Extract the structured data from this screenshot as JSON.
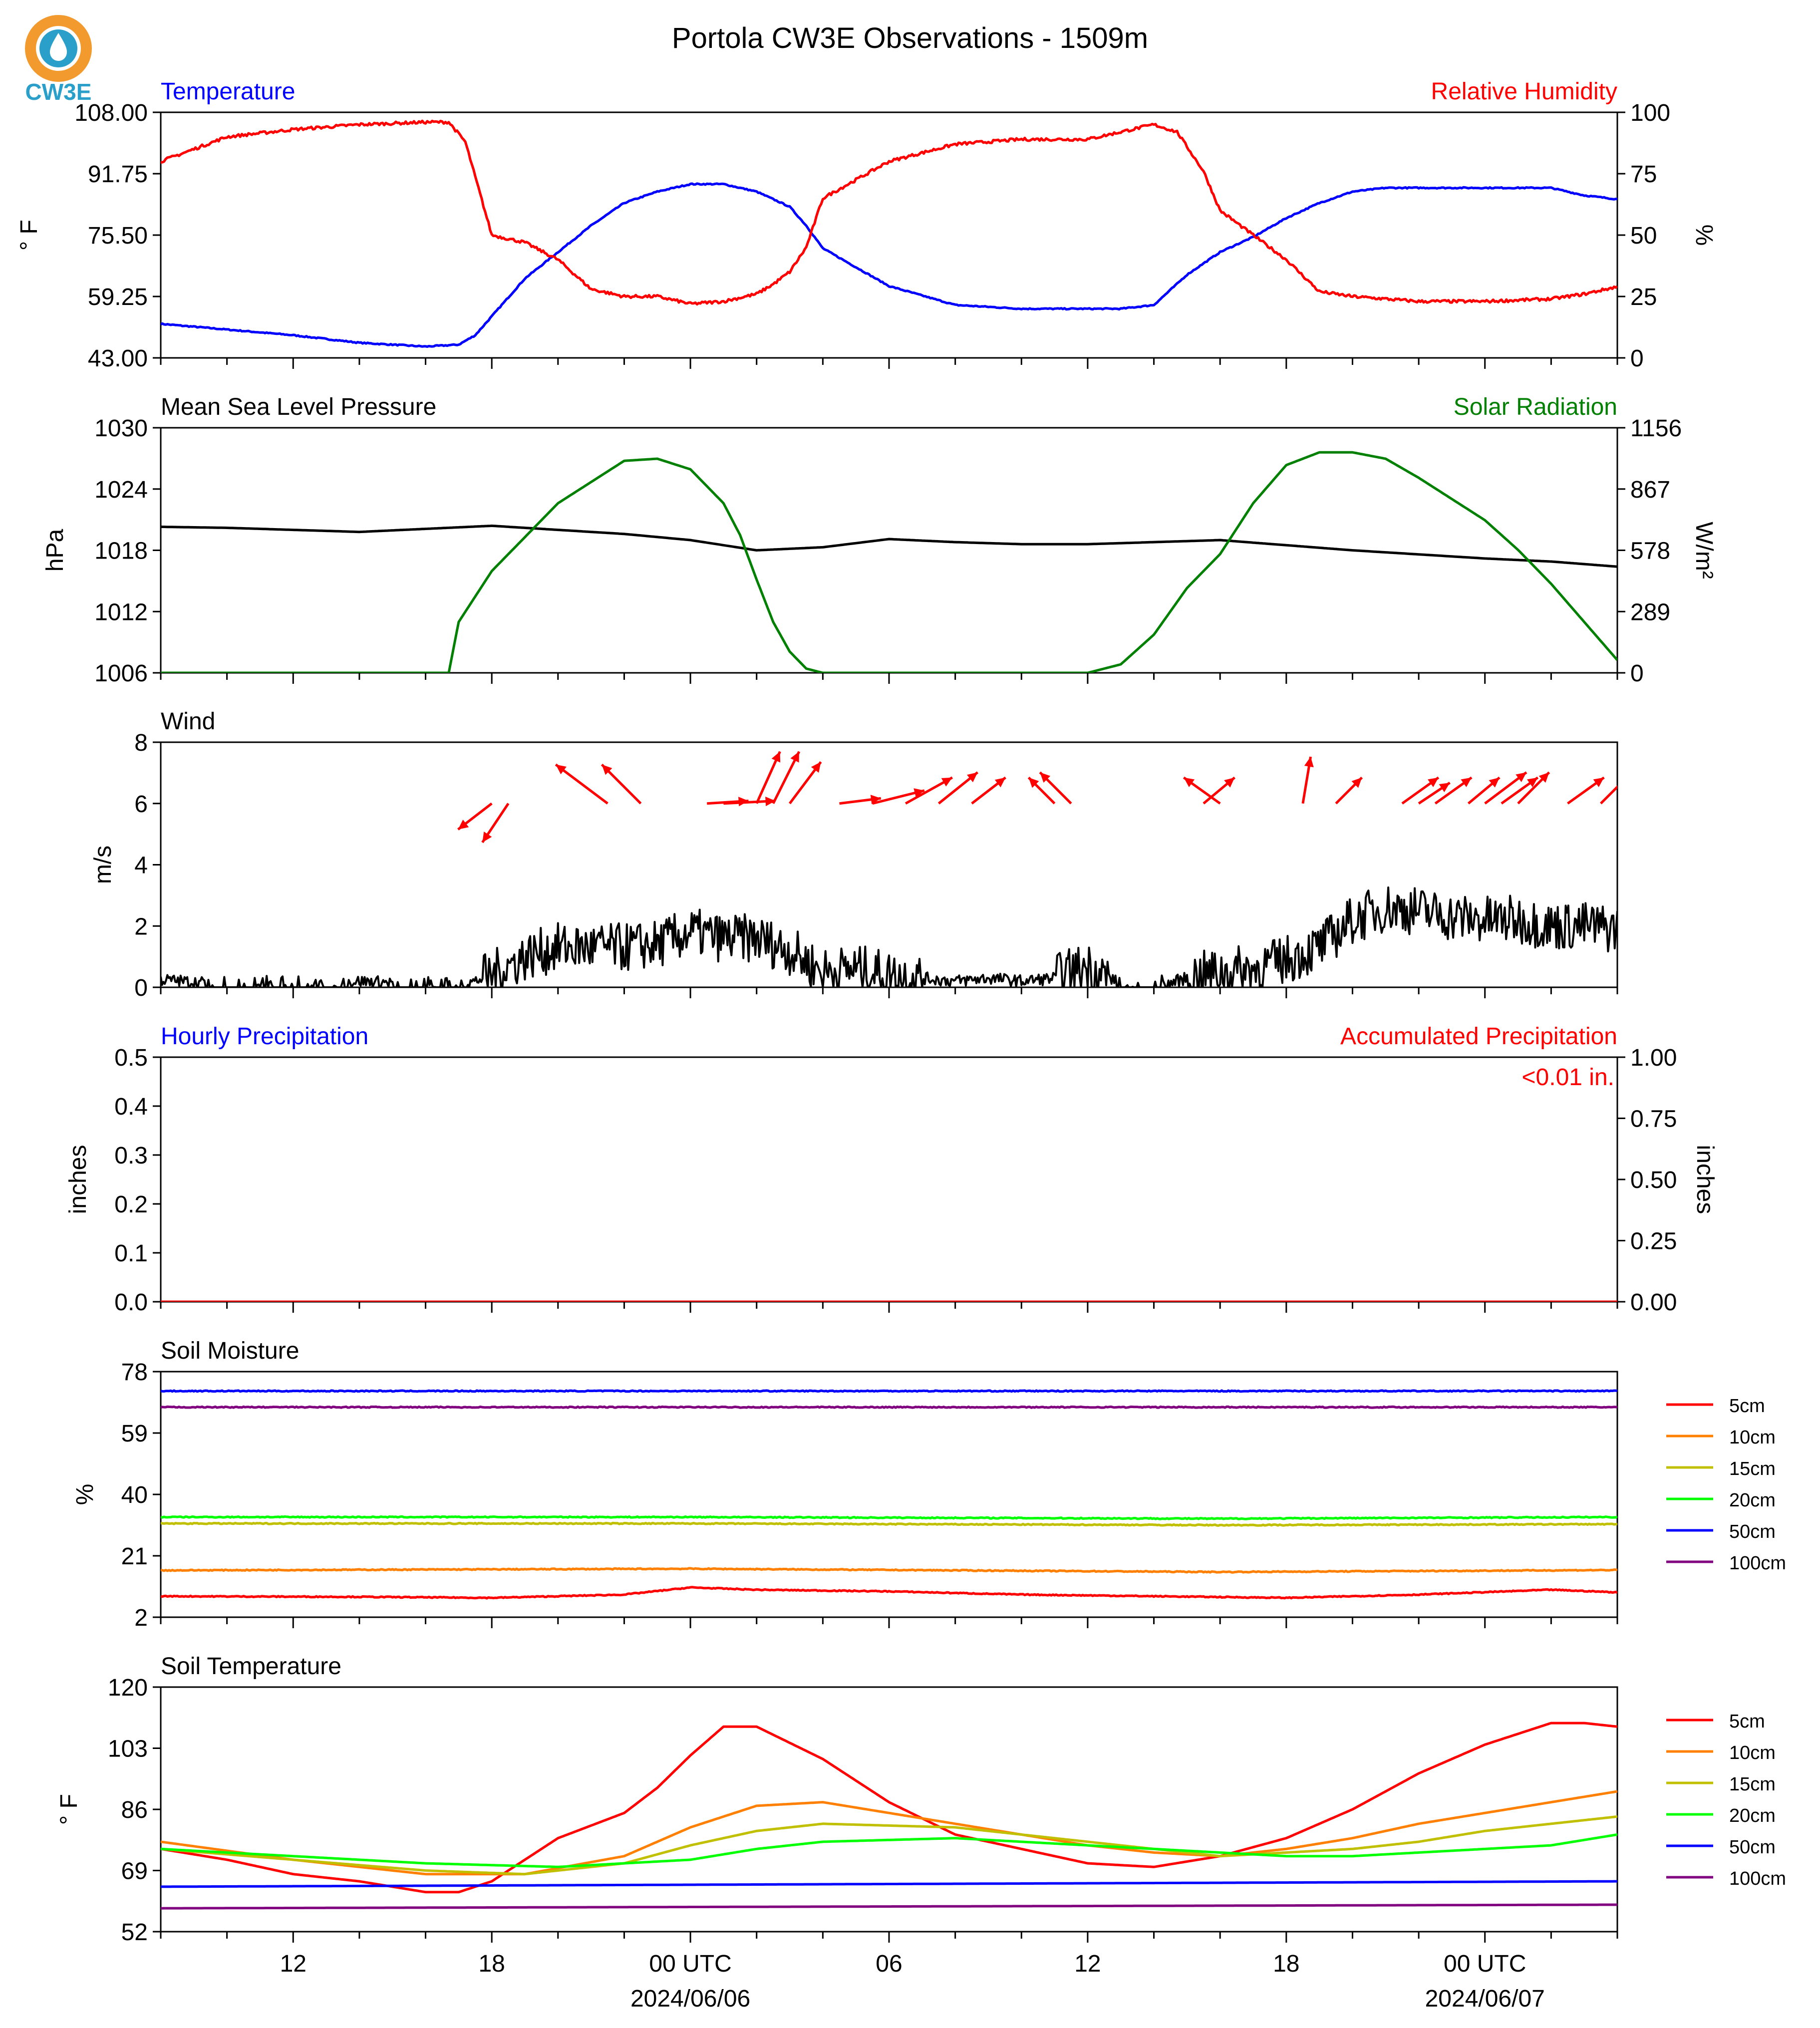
{
  "header": {
    "title": "Portola CW3E Observations - 1509m",
    "logo_text": "CW3E"
  },
  "x_axis": {
    "hours_range": [
      -16,
      28
    ],
    "tick_labels": [
      "12",
      "18",
      "00 UTC",
      "06",
      "12",
      "18",
      "00 UTC"
    ],
    "date_labels": [
      "2024/06/06",
      "2024/06/07"
    ]
  },
  "chart_data": [
    {
      "type": "line",
      "panel": "temperature_humidity",
      "left_title": "Temperature",
      "right_title": "Relative Humidity",
      "ylabel_left": "° F",
      "ylabel_right": "%",
      "ylim_left": [
        43.0,
        108.0
      ],
      "yticks_left": [
        "43.00",
        "59.25",
        "75.50",
        "91.75",
        "108.00"
      ],
      "ylim_right": [
        0,
        100
      ],
      "yticks_right": [
        "0",
        "25",
        "50",
        "75",
        "100"
      ],
      "colors": {
        "temperature": "#0000ff",
        "humidity": "#ff0000"
      },
      "series": [
        {
          "name": "Temperature",
          "axis": "left",
          "color": "#0000ff",
          "x": [
            -16,
            -14,
            -12,
            -10,
            -8,
            -7,
            -6.5,
            -6,
            -5,
            -4,
            -3,
            -2,
            -1,
            0,
            1,
            2,
            3,
            3.5,
            4,
            6,
            8,
            10,
            12,
            13,
            14,
            15,
            16,
            17,
            18,
            19,
            20,
            21,
            22,
            24,
            26,
            27,
            28
          ],
          "y": [
            52,
            50.5,
            49,
            47,
            46,
            46.5,
            49,
            54,
            64,
            71,
            78,
            84,
            87,
            89,
            89,
            87,
            83,
            78,
            72,
            62,
            57,
            56,
            56,
            56,
            57,
            65,
            71,
            75,
            80,
            84,
            87,
            88,
            88,
            88,
            88,
            86,
            85
          ]
        },
        {
          "name": "Relative Humidity",
          "axis": "right",
          "color": "#ff0000",
          "x": [
            -16,
            -15,
            -14,
            -12,
            -10,
            -8,
            -7.3,
            -6.8,
            -6,
            -5,
            -4,
            -3,
            -2,
            -1,
            0,
            1,
            2,
            2.5,
            3,
            3.5,
            4,
            6,
            8,
            10,
            12,
            13,
            14,
            14.7,
            15.5,
            16,
            17,
            18,
            19,
            20,
            21,
            22,
            24,
            26,
            27,
            28
          ],
          "y": [
            80,
            85,
            90,
            93,
            95,
            96,
            96,
            88,
            50,
            47,
            40,
            28,
            25,
            25,
            22,
            23,
            26,
            30,
            35,
            45,
            65,
            80,
            87,
            89,
            89,
            92,
            95,
            92,
            76,
            60,
            50,
            40,
            27,
            25,
            24,
            23,
            23,
            24,
            26,
            29
          ]
        }
      ]
    },
    {
      "type": "line",
      "panel": "pressure_solar",
      "left_title": "Mean Sea Level Pressure",
      "right_title": "Solar Radiation",
      "ylabel_left": "hPa",
      "ylabel_right": "W/m²",
      "ylim_left": [
        1006,
        1030
      ],
      "yticks_left": [
        "1006",
        "1012",
        "1018",
        "1024",
        "1030"
      ],
      "ylim_right": [
        0,
        1156
      ],
      "yticks_right": [
        "0",
        "289",
        "578",
        "867",
        "1156"
      ],
      "series": [
        {
          "name": "Mean Sea Level Pressure",
          "axis": "left",
          "color": "#000000",
          "x": [
            -16,
            -14,
            -12,
            -10,
            -8,
            -6,
            -4,
            -2,
            0,
            2,
            4,
            6,
            8,
            10,
            12,
            14,
            16,
            18,
            20,
            22,
            24,
            26,
            28
          ],
          "y": [
            1020.3,
            1020.2,
            1020.0,
            1019.8,
            1020.1,
            1020.4,
            1020.0,
            1019.6,
            1019.0,
            1018.0,
            1018.3,
            1019.1,
            1018.8,
            1018.6,
            1018.6,
            1018.8,
            1019.0,
            1018.5,
            1018.0,
            1017.6,
            1017.2,
            1016.9,
            1016.4
          ]
        },
        {
          "name": "Solar Radiation",
          "axis": "right",
          "color": "#008000",
          "x": [
            -16,
            -7.3,
            -7,
            -6,
            -4,
            -2,
            -1,
            0,
            1,
            1.5,
            2,
            2.5,
            3,
            3.5,
            4,
            8,
            12,
            13,
            14,
            15,
            16,
            17,
            18,
            19,
            20,
            21,
            22,
            23,
            24,
            25,
            26,
            27,
            28
          ],
          "y": [
            0,
            0,
            240,
            480,
            800,
            1000,
            1010,
            960,
            800,
            650,
            440,
            240,
            100,
            20,
            0,
            0,
            0,
            40,
            180,
            400,
            560,
            800,
            980,
            1040,
            1040,
            1010,
            920,
            820,
            720,
            580,
            420,
            240,
            60
          ]
        }
      ]
    },
    {
      "type": "line",
      "panel": "wind",
      "left_title": "Wind",
      "ylabel_left": "m/s",
      "ylim_left": [
        0,
        8
      ],
      "yticks_left": [
        "0",
        "2",
        "4",
        "6",
        "8"
      ],
      "series": [
        {
          "name": "Wind",
          "axis": "left",
          "color": "#000000",
          "x": [
            -16,
            -14,
            -12,
            -10,
            -8,
            -7,
            -6,
            -5,
            -4,
            -3,
            -2,
            -1,
            0,
            1,
            2,
            3,
            4,
            5,
            6,
            7,
            8,
            9,
            10,
            11,
            12,
            13,
            14,
            15,
            16,
            17,
            18,
            19,
            20,
            21,
            22,
            23,
            24,
            25,
            26,
            27,
            28
          ],
          "y": [
            0.25,
            0.1,
            0.0,
            0.2,
            0.1,
            0.0,
            0.4,
            1.0,
            1.3,
            1.3,
            1.3,
            1.4,
            1.8,
            1.6,
            1.6,
            1.2,
            0.5,
            0.6,
            0.4,
            0.3,
            0.2,
            0.3,
            0.2,
            0.3,
            0.7,
            0.1,
            0.0,
            0.3,
            0.5,
            0.6,
            0.9,
            1.3,
            2.2,
            2.6,
            2.5,
            2.3,
            2.2,
            2.2,
            2.0,
            2.0,
            1.9
          ]
        },
        {
          "name": "Wind Direction",
          "axis": "left",
          "color": "#ff0000",
          "type": "vector",
          "x": [
            -6.0,
            -5.5,
            -2.5,
            -1.5,
            0.5,
            1.0,
            2.0,
            2.5,
            3.0,
            4.5,
            5.5,
            6.5,
            7.5,
            8.5,
            11.0,
            11.5,
            15.5,
            16.0,
            18.5,
            19.5,
            21.5,
            22.0,
            22.5,
            23.5,
            24.0,
            24.5,
            25.0,
            26.5,
            27.5
          ],
          "u": [
            -1.3,
            -1.0,
            -2.0,
            -1.5,
            1.6,
            2.0,
            0.9,
            1.0,
            1.2,
            1.6,
            2.0,
            1.8,
            1.5,
            1.3,
            -1.0,
            -1.2,
            1.2,
            -1.4,
            0.3,
            1.0,
            1.4,
            1.2,
            1.4,
            1.2,
            1.6,
            1.4,
            1.2,
            1.4,
            1.2
          ],
          "v": [
            -1.0,
            -1.5,
            1.5,
            1.5,
            0.1,
            0.1,
            2.0,
            2.0,
            1.6,
            0.2,
            0.5,
            1.0,
            1.2,
            1.0,
            1.0,
            1.2,
            1.0,
            1.0,
            1.8,
            1.0,
            1.0,
            0.8,
            1.0,
            1.0,
            1.2,
            1.0,
            1.2,
            1.0,
            1.2
          ]
        }
      ]
    },
    {
      "type": "line",
      "panel": "precipitation",
      "left_title": "Hourly Precipitation",
      "right_title": "Accumulated Precipitation",
      "annotation": "<0.01 in.",
      "ylabel_left": "inches",
      "ylabel_right": "inches",
      "ylim_left": [
        0,
        0.5
      ],
      "yticks_left": [
        "0.0",
        "0.1",
        "0.2",
        "0.3",
        "0.4",
        "0.5"
      ],
      "ylim_right": [
        0,
        1
      ],
      "yticks_right": [
        "0.00",
        "0.25",
        "0.50",
        "0.75",
        "1.00"
      ],
      "series": [
        {
          "name": "Hourly Precipitation",
          "axis": "left",
          "color": "#0000ff",
          "x": [
            -16,
            28
          ],
          "y": [
            0,
            0
          ]
        },
        {
          "name": "Accumulated Precipitation",
          "axis": "right",
          "color": "#ff0000",
          "x": [
            -16,
            28
          ],
          "y": [
            0,
            0
          ]
        }
      ]
    },
    {
      "type": "line",
      "panel": "soil_moisture",
      "left_title": "Soil Moisture",
      "ylabel_left": "%",
      "ylim_left": [
        2,
        78
      ],
      "yticks_left": [
        "2",
        "21",
        "40",
        "59",
        "78"
      ],
      "legend": [
        "5cm",
        "10cm",
        "15cm",
        "20cm",
        "50cm",
        "100cm"
      ],
      "legend_position": "right",
      "series": [
        {
          "name": "5cm",
          "color": "#ff0000",
          "x": [
            -16,
            -10,
            -6,
            -2,
            0,
            2,
            6,
            10,
            14,
            18,
            22,
            26,
            28
          ],
          "y": [
            8.5,
            8.3,
            8,
            9,
            11.2,
            10.5,
            10,
            9,
            8.5,
            8,
            9,
            10.5,
            9.7
          ]
        },
        {
          "name": "10cm",
          "color": "#ff8000",
          "x": [
            -16,
            0,
            16,
            28
          ],
          "y": [
            16.5,
            17,
            16,
            16.6
          ]
        },
        {
          "name": "15cm",
          "color": "#c0c000",
          "x": [
            -16,
            0,
            16,
            28
          ],
          "y": [
            31,
            31,
            30.5,
            30.8
          ]
        },
        {
          "name": "20cm",
          "color": "#00ff00",
          "x": [
            -16,
            0,
            16,
            28
          ],
          "y": [
            33,
            33,
            32.5,
            33
          ]
        },
        {
          "name": "50cm",
          "color": "#0000ff",
          "x": [
            -16,
            28
          ],
          "y": [
            72,
            72
          ]
        },
        {
          "name": "100cm",
          "color": "#800080",
          "x": [
            -16,
            28
          ],
          "y": [
            67,
            67
          ]
        }
      ]
    },
    {
      "type": "line",
      "panel": "soil_temperature",
      "left_title": "Soil Temperature",
      "ylabel_left": "° F",
      "ylim_left": [
        52,
        120
      ],
      "yticks_left": [
        "52",
        "69",
        "86",
        "103",
        "120"
      ],
      "legend": [
        "5cm",
        "10cm",
        "15cm",
        "20cm",
        "50cm",
        "100cm"
      ],
      "legend_position": "right",
      "series": [
        {
          "name": "5cm",
          "color": "#ff0000",
          "x": [
            -16,
            -14,
            -12,
            -10,
            -8,
            -7,
            -6,
            -5,
            -4,
            -2,
            -1,
            0,
            1,
            2,
            4,
            6,
            8,
            10,
            12,
            14,
            16,
            18,
            20,
            22,
            24,
            26,
            27,
            28
          ],
          "y": [
            75,
            72,
            68,
            66,
            63,
            63,
            66,
            72,
            78,
            85,
            92,
            101,
            109,
            109,
            100,
            88,
            79,
            75,
            71,
            70,
            73,
            78,
            86,
            96,
            104,
            110,
            110,
            109
          ]
        },
        {
          "name": "10cm",
          "color": "#ff8000",
          "x": [
            -16,
            -12,
            -8,
            -5,
            -2,
            0,
            2,
            4,
            8,
            12,
            14,
            16,
            18,
            20,
            22,
            24,
            26,
            28
          ],
          "y": [
            77,
            72,
            68,
            68,
            73,
            81,
            87,
            88,
            82,
            76,
            74,
            73,
            75,
            78,
            82,
            85,
            88,
            91
          ]
        },
        {
          "name": "15cm",
          "color": "#c0c000",
          "x": [
            -16,
            -12,
            -8,
            -5,
            -2,
            0,
            2,
            4,
            8,
            12,
            14,
            16,
            18,
            20,
            22,
            24,
            26,
            28
          ],
          "y": [
            75,
            72,
            69,
            68,
            71,
            76,
            80,
            82,
            81,
            77,
            75,
            73,
            74,
            75,
            77,
            80,
            82,
            84
          ]
        },
        {
          "name": "20cm",
          "color": "#00ff00",
          "x": [
            -16,
            -12,
            -8,
            -4,
            0,
            2,
            4,
            8,
            12,
            14,
            16,
            18,
            20,
            22,
            24,
            26,
            28
          ],
          "y": [
            75,
            73,
            71,
            70,
            72,
            75,
            77,
            78,
            76,
            75,
            74,
            73,
            73,
            74,
            75,
            76,
            79
          ]
        },
        {
          "name": "50cm",
          "color": "#0000ff",
          "x": [
            -16,
            28
          ],
          "y": [
            64.5,
            66
          ]
        },
        {
          "name": "100cm",
          "color": "#800080",
          "x": [
            -16,
            28
          ],
          "y": [
            58.5,
            59.5
          ]
        }
      ]
    }
  ]
}
